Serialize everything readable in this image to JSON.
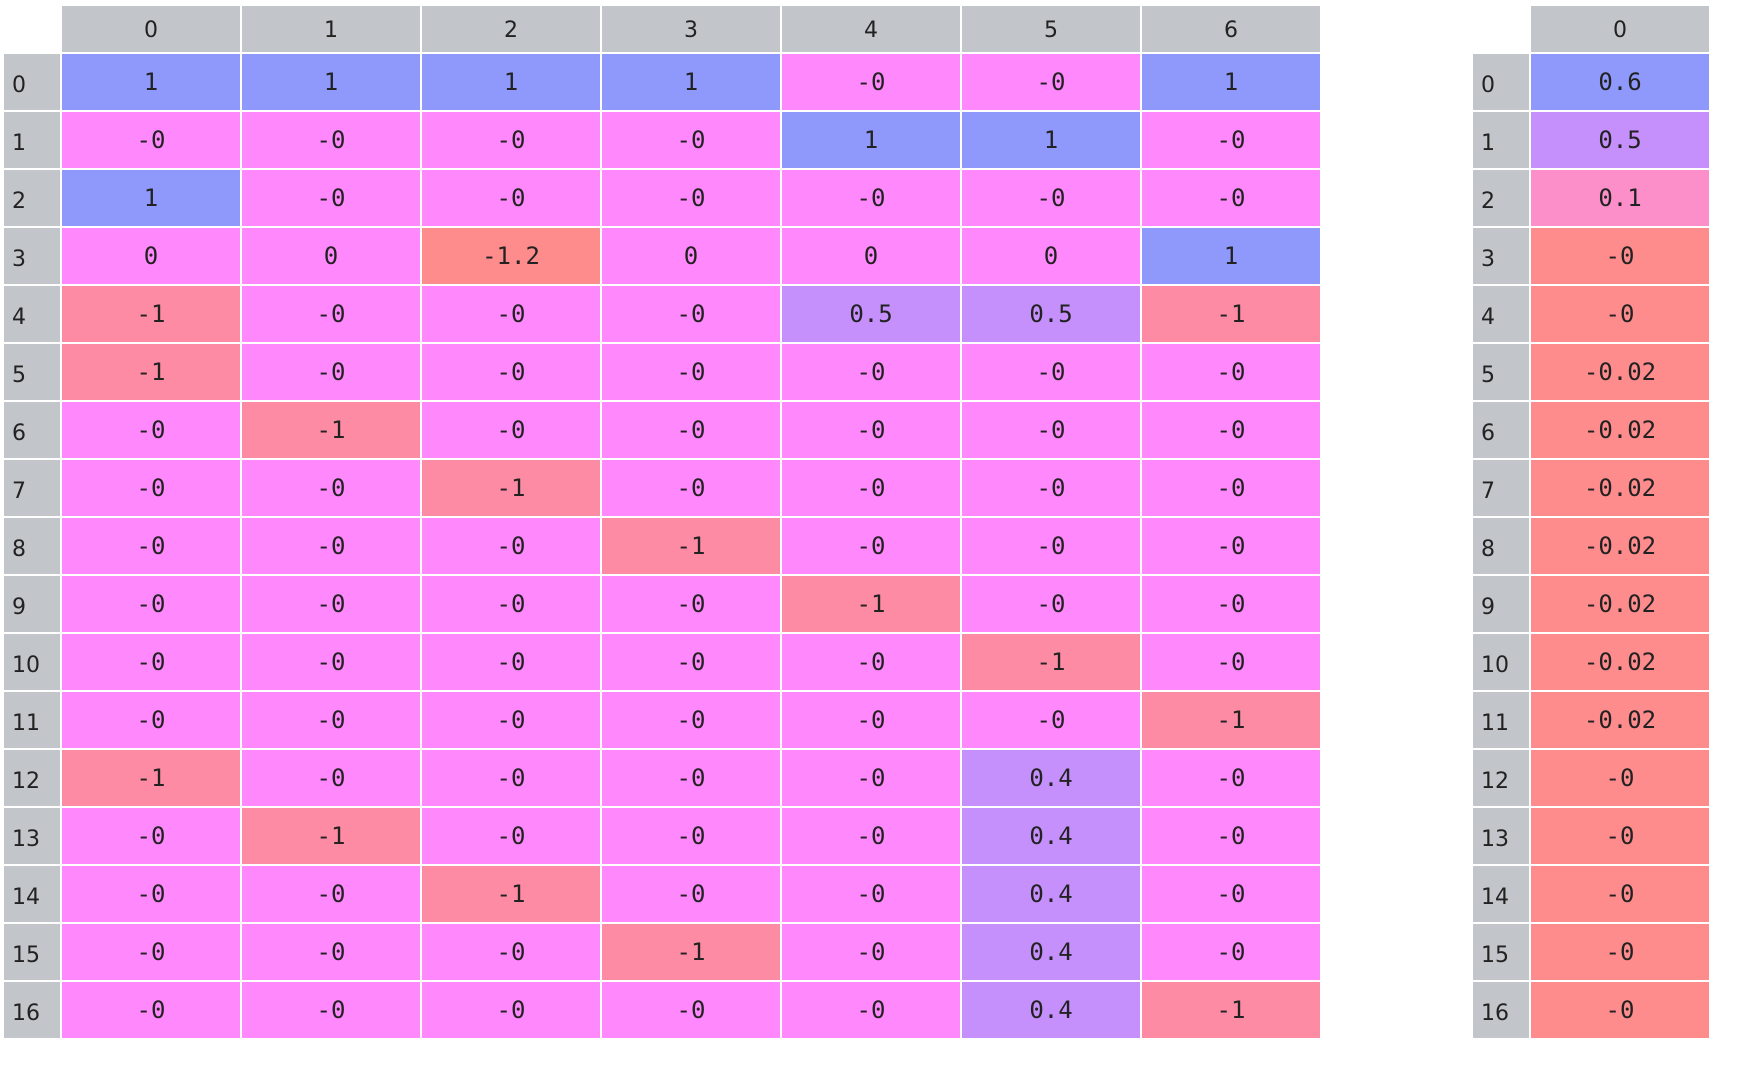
{
  "matrix": {
    "column_headers": [
      "0",
      "1",
      "2",
      "3",
      "4",
      "5",
      "6"
    ],
    "row_headers": [
      "0",
      "1",
      "2",
      "3",
      "4",
      "5",
      "6",
      "7",
      "8",
      "9",
      "10",
      "11",
      "12",
      "13",
      "14",
      "15",
      "16"
    ],
    "rows": [
      [
        "1",
        "1",
        "1",
        "1",
        "-0",
        "-0",
        "1"
      ],
      [
        "-0",
        "-0",
        "-0",
        "-0",
        "1",
        "1",
        "-0"
      ],
      [
        "1",
        "-0",
        "-0",
        "-0",
        "-0",
        "-0",
        "-0"
      ],
      [
        "0",
        "0",
        "-1.2",
        "0",
        "0",
        "0",
        "1"
      ],
      [
        "-1",
        "-0",
        "-0",
        "-0",
        "0.5",
        "0.5",
        "-1"
      ],
      [
        "-1",
        "-0",
        "-0",
        "-0",
        "-0",
        "-0",
        "-0"
      ],
      [
        "-0",
        "-1",
        "-0",
        "-0",
        "-0",
        "-0",
        "-0"
      ],
      [
        "-0",
        "-0",
        "-1",
        "-0",
        "-0",
        "-0",
        "-0"
      ],
      [
        "-0",
        "-0",
        "-0",
        "-1",
        "-0",
        "-0",
        "-0"
      ],
      [
        "-0",
        "-0",
        "-0",
        "-0",
        "-1",
        "-0",
        "-0"
      ],
      [
        "-0",
        "-0",
        "-0",
        "-0",
        "-0",
        "-1",
        "-0"
      ],
      [
        "-0",
        "-0",
        "-0",
        "-0",
        "-0",
        "-0",
        "-1"
      ],
      [
        "-1",
        "-0",
        "-0",
        "-0",
        "-0",
        "0.4",
        "-0"
      ],
      [
        "-0",
        "-1",
        "-0",
        "-0",
        "-0",
        "0.4",
        "-0"
      ],
      [
        "-0",
        "-0",
        "-1",
        "-0",
        "-0",
        "0.4",
        "-0"
      ],
      [
        "-0",
        "-0",
        "-0",
        "-1",
        "-0",
        "0.4",
        "-0"
      ],
      [
        "-0",
        "-0",
        "-0",
        "-0",
        "-0",
        "0.4",
        "-1"
      ]
    ]
  },
  "vector": {
    "column_headers": [
      "0"
    ],
    "row_headers": [
      "0",
      "1",
      "2",
      "3",
      "4",
      "5",
      "6",
      "7",
      "8",
      "9",
      "10",
      "11",
      "12",
      "13",
      "14",
      "15",
      "16"
    ],
    "values": [
      "0.6",
      "0.5",
      "0.1",
      "-0",
      "-0",
      "-0.02",
      "-0.02",
      "-0.02",
      "-0.02",
      "-0.02",
      "-0.02",
      "-0.02",
      "-0",
      "-0",
      "-0",
      "-0",
      "-0"
    ]
  },
  "colors": {
    "header_gray": "#c2c6ca",
    "positive_blue": "#8f99fc",
    "half_purple": "#c58ffc",
    "zero_magenta": "#ff88fc",
    "negative_pink": "#fe8ba4",
    "negative_salmon": "#ff8c8d",
    "low_pink": "#fc8fc9"
  }
}
